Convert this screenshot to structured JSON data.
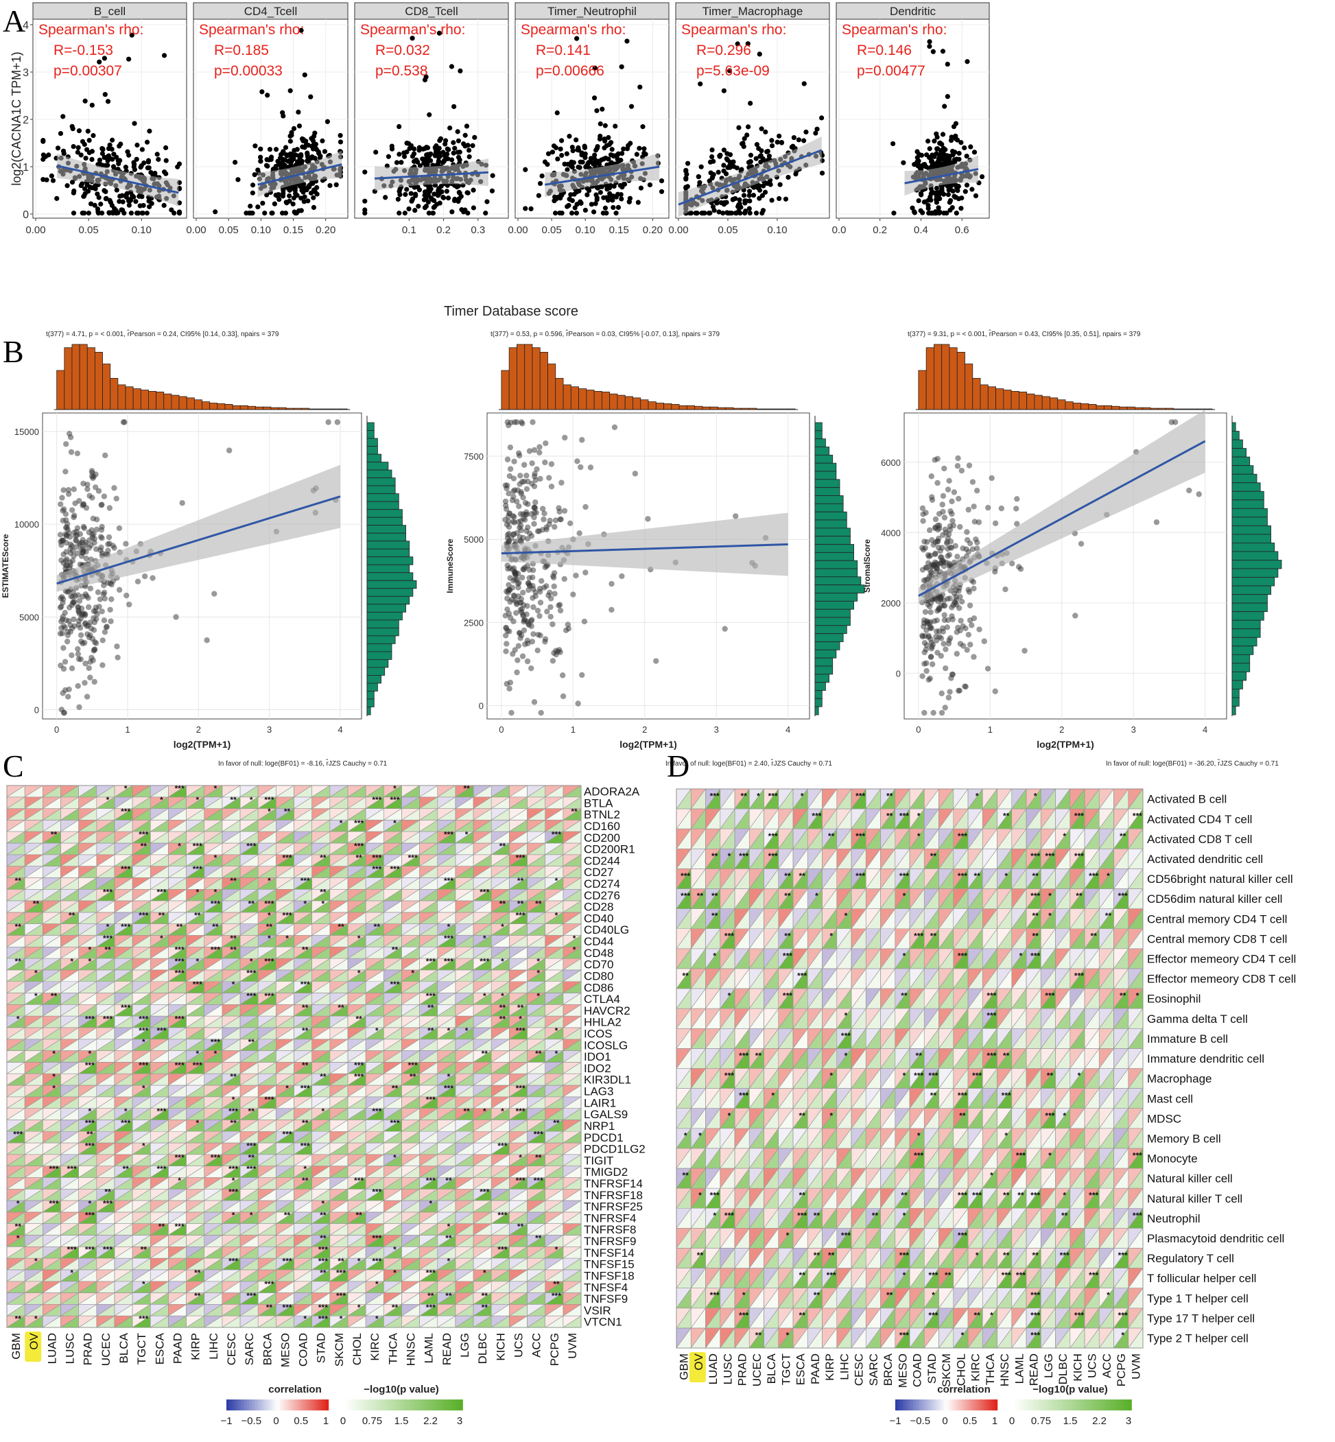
{
  "panel_labels": [
    "A",
    "B",
    "C",
    "D"
  ],
  "colors": {
    "scatter_point": "#000000",
    "fit_line": "#2f56a6",
    "ci_band": "#b4b4b4",
    "rho_text": "#e8221c",
    "strip_bg": "#d9d9d9",
    "hist_top": "#cc5a16",
    "hist_right": "#118a66",
    "heat_pos": "#e5584a",
    "heat_neg": "#6b52a8",
    "heat_p": "#5ab02a"
  },
  "chart_data": [
    {
      "id": "A",
      "type": "scatter",
      "ylabel": "log2(CACNA1C TPM+1)",
      "xlabel": "Timer Database score",
      "ylim": [
        0,
        4
      ],
      "yticks": [
        "0",
        "1",
        "2",
        "3",
        "4"
      ],
      "stat_header": "Spearman's rho:",
      "facets": [
        {
          "title": "B_cell",
          "r_text": "R=-0.153",
          "p_text": "p=0.00307",
          "xlim": [
            0,
            0.14
          ],
          "xticks": [
            0,
            0.05,
            0.1
          ],
          "xtick_labels": [
            "0.00",
            "0.05",
            "0.10"
          ],
          "x_center": 0.075,
          "x_spread": 0.032,
          "fit": [
            [
              0.02,
              1.02
            ],
            [
              0.135,
              0.45
            ]
          ]
        },
        {
          "title": "CD4_Tcell",
          "r_text": "R=0.185",
          "p_text": "p=0.00033",
          "xlim": [
            0,
            0.23
          ],
          "xticks": [
            0,
            0.05,
            0.1,
            0.15,
            0.2
          ],
          "xtick_labels": [
            "0.00",
            "0.05",
            "0.10",
            "0.15",
            "0.20"
          ],
          "x_center": 0.15,
          "x_spread": 0.03,
          "fit": [
            [
              0.095,
              0.62
            ],
            [
              0.225,
              1.05
            ]
          ]
        },
        {
          "title": "CD8_Tcell",
          "r_text": "R=0.032",
          "p_text": "p=0.538",
          "xlim": [
            -0.05,
            0.38
          ],
          "xticks": [
            0.1,
            0.2,
            0.3
          ],
          "xtick_labels": [
            "0.1",
            "0.2",
            "0.3"
          ],
          "x_center": 0.17,
          "x_spread": 0.075,
          "fit": [
            [
              0.0,
              0.75
            ],
            [
              0.33,
              0.88
            ]
          ]
        },
        {
          "title": "Timer_Neutrophil",
          "r_text": "R=0.141",
          "p_text": "p=0.00666",
          "xlim": [
            0,
            0.22
          ],
          "xticks": [
            0,
            0.05,
            0.1,
            0.15,
            0.2
          ],
          "xtick_labels": [
            "0.00",
            "0.05",
            "0.10",
            "0.15",
            "0.20"
          ],
          "x_center": 0.12,
          "x_spread": 0.04,
          "fit": [
            [
              0.04,
              0.62
            ],
            [
              0.21,
              1.0
            ]
          ]
        },
        {
          "title": "Timer_Macrophage",
          "r_text": "R=0.296",
          "p_text": "p=5.63e-09",
          "xlim": [
            0,
            0.15
          ],
          "xticks": [
            0,
            0.05,
            0.1
          ],
          "xtick_labels": [
            "0.00",
            "0.05",
            "0.10"
          ],
          "x_center": 0.06,
          "x_spread": 0.035,
          "fit": [
            [
              0.0,
              0.2
            ],
            [
              0.145,
              1.35
            ]
          ]
        },
        {
          "title": "Dendritic",
          "r_text": "R=0.146",
          "p_text": "p=0.00477",
          "xlim": [
            0,
            0.72
          ],
          "xticks": [
            0,
            0.2,
            0.4,
            0.6
          ],
          "xtick_labels": [
            "0.0",
            "0.2",
            "0.4",
            "0.6"
          ],
          "x_center": 0.5,
          "x_spread": 0.07,
          "fit": [
            [
              0.32,
              0.65
            ],
            [
              0.68,
              0.95
            ]
          ]
        }
      ]
    },
    {
      "id": "B",
      "type": "scatter",
      "xlabel": "log2(TPM+1)",
      "xlim": [
        -0.2,
        4.3
      ],
      "xticks": [
        "0",
        "1",
        "2",
        "3",
        "4"
      ],
      "plots": [
        {
          "ylabel": "ESTIMATEScore",
          "stats": "t(377) = 4.71, p = < 0.001, r̂Pearson = 0.24, CI95% [0.14, 0.33], npairs = 379",
          "ylim": [
            -500,
            16000
          ],
          "yticks": [
            0,
            5000,
            10000,
            15000
          ],
          "ytick_labels": [
            "0",
            "5000",
            "10000",
            "15000"
          ],
          "fit": [
            [
              0,
              6800
            ],
            [
              4,
              11500
            ]
          ],
          "y_center": 8000,
          "y_spread": 2800,
          "hist_top": [
            60,
            95,
            100,
            100,
            95,
            88,
            70,
            48,
            38,
            35,
            32,
            30,
            28,
            27,
            24,
            22,
            20,
            18,
            15,
            12,
            10,
            9,
            8,
            6,
            6,
            5,
            4,
            4,
            3,
            3,
            2,
            2,
            2,
            1,
            1,
            1,
            1,
            1
          ],
          "hist_right": [
            2,
            2,
            3,
            3,
            4,
            6,
            7,
            8,
            8,
            9,
            9,
            10,
            10,
            11,
            11,
            12,
            12,
            13,
            12,
            13,
            14,
            13,
            12,
            11,
            10,
            9,
            9,
            8,
            7,
            7,
            6,
            5,
            4,
            3,
            2,
            2,
            1
          ]
        },
        {
          "ylabel": "ImmuneScore",
          "stats": "t(377) = 0.53, p = 0.596, r̂Pearson = 0.03, CI95% [-0.07, 0.13], npairs = 379",
          "ylim": [
            -400,
            8800
          ],
          "yticks": [
            0,
            2500,
            5000,
            7500
          ],
          "ytick_labels": [
            "0",
            "2500",
            "5000",
            "7500"
          ],
          "fit": [
            [
              0,
              4580
            ],
            [
              4,
              4850
            ]
          ],
          "y_center": 4700,
          "y_spread": 1800,
          "hist_top": [
            60,
            95,
            100,
            100,
            95,
            88,
            70,
            48,
            38,
            35,
            32,
            30,
            28,
            27,
            24,
            22,
            20,
            18,
            15,
            12,
            10,
            9,
            8,
            6,
            6,
            5,
            4,
            4,
            3,
            3,
            2,
            2,
            2,
            1,
            1,
            1,
            1,
            1
          ],
          "hist_right": [
            2,
            2,
            3,
            4,
            5,
            6,
            6,
            7,
            7,
            8,
            8,
            9,
            9,
            10,
            10,
            11,
            11,
            12,
            12,
            13,
            14,
            12,
            11,
            10,
            10,
            9,
            8,
            7,
            6,
            5,
            5,
            4,
            3,
            2,
            2,
            1
          ]
        },
        {
          "ylabel": "StromalScore",
          "stats": "t(377) = 9.31, p = < 0.001, r̂Pearson = 0.43, CI95% [0.35, 0.51], npairs = 379",
          "ylim": [
            -1300,
            7400
          ],
          "yticks": [
            0,
            2000,
            4000,
            6000
          ],
          "ytick_labels": [
            "0",
            "2000",
            "4000",
            "6000"
          ],
          "fit": [
            [
              0,
              2200
            ],
            [
              4,
              6600
            ]
          ],
          "y_center": 3200,
          "y_spread": 1400,
          "hist_top": [
            60,
            95,
            100,
            100,
            95,
            88,
            70,
            48,
            38,
            35,
            32,
            30,
            28,
            27,
            24,
            22,
            20,
            18,
            15,
            12,
            10,
            9,
            8,
            6,
            6,
            5,
            4,
            4,
            3,
            3,
            2,
            2,
            2,
            1,
            1,
            1,
            1,
            1
          ],
          "hist_right": [
            1,
            2,
            3,
            4,
            5,
            6,
            7,
            8,
            9,
            9,
            10,
            10,
            11,
            11,
            12,
            13,
            14,
            13,
            12,
            11,
            10,
            10,
            9,
            8,
            8,
            7,
            6,
            5,
            5,
            4,
            3,
            2,
            2,
            1
          ]
        }
      ]
    },
    {
      "id": "C",
      "type": "heatmap",
      "null_note": "In favor of null: loge(BF01) = -8.16, r̂JZS Cauchy = 0.71",
      "columns": [
        "GBM",
        "OV",
        "LUAD",
        "LUSC",
        "PRAD",
        "UCEC",
        "BLCA",
        "TGCT",
        "ESCA",
        "PAAD",
        "KIRP",
        "LIHC",
        "CESC",
        "SARC",
        "BRCA",
        "MESO",
        "COAD",
        "STAD",
        "SKCM",
        "CHOL",
        "KIRC",
        "THCA",
        "HNSC",
        "LAML",
        "READ",
        "LGG",
        "DLBC",
        "KICH",
        "UCS",
        "ACC",
        "PCPG",
        "UVM"
      ],
      "highlight_column": "OV",
      "rows": [
        "ADORA2A",
        "BTLA",
        "BTNL2",
        "CD160",
        "CD200",
        "CD200R1",
        "CD244",
        "CD27",
        "CD274",
        "CD276",
        "CD28",
        "CD40",
        "CD40LG",
        "CD44",
        "CD48",
        "CD70",
        "CD80",
        "CD86",
        "CTLA4",
        "HAVCR2",
        "HHLA2",
        "ICOS",
        "ICOSLG",
        "IDO1",
        "IDO2",
        "KIR3DL1",
        "LAG3",
        "LAIR1",
        "LGALS9",
        "NRP1",
        "PDCD1",
        "PDCD1LG2",
        "TIGIT",
        "TMIGD2",
        "TNFRSF14",
        "TNFRSF18",
        "TNFRSF25",
        "TNFRSF4",
        "TNFRSF8",
        "TNFRSF9",
        "TNFSF14",
        "TNFSF15",
        "TNFSF18",
        "TNFSF4",
        "TNFSF9",
        "VSIR",
        "VTCN1"
      ],
      "legend": {
        "correlation_title": "correlation",
        "correlation_ticks": [
          "−1",
          "−0.5",
          "0",
          "0.5",
          "1"
        ],
        "p_title": "−log10(p value)",
        "p_ticks": [
          "0",
          "0.75",
          "1.5",
          "2.2",
          "3"
        ]
      }
    },
    {
      "id": "D",
      "type": "heatmap",
      "null_note_left": "In favor of null: loge(BF01) = 2.40, r̂JZS Cauchy = 0.71",
      "null_note_right": "In favor of null: loge(BF01) = -36.20, r̂JZS Cauchy = 0.71",
      "columns": [
        "GBM",
        "OV",
        "LUAD",
        "LUSC",
        "PRAD",
        "UCEC",
        "BLCA",
        "TGCT",
        "ESCA",
        "PAAD",
        "KIRP",
        "LIHC",
        "CESC",
        "SARC",
        "BRCA",
        "MESO",
        "COAD",
        "STAD",
        "SKCM",
        "CHOL",
        "KIRC",
        "THCA",
        "HNSC",
        "LAML",
        "READ",
        "LGG",
        "DLBC",
        "KICH",
        "UCS",
        "ACC",
        "PCPG",
        "UVM"
      ],
      "highlight_column": "OV",
      "rows": [
        "Activated B cell",
        "Activated CD4 T cell",
        "Activated CD8 T cell",
        "Activated dendritic cell",
        "CD56bright natural killer cell",
        "CD56dim natural killer cell",
        "Central memory CD4 T cell",
        "Central memory CD8 T cell",
        "Effector memeory CD4 T cell",
        "Effector memeory CD8 T cell",
        "Eosinophil",
        "Gamma delta T cell",
        "Immature  B cell",
        "Immature dendritic cell",
        "Macrophage",
        "Mast cell",
        "MDSC",
        "Memory B cell",
        "Monocyte",
        "Natural killer cell",
        "Natural killer T cell",
        "Neutrophil",
        "Plasmacytoid dendritic cell",
        "Regulatory T cell",
        "T follicular helper cell",
        "Type 1 T helper cell",
        "Type 17 T helper cell",
        "Type 2 T helper cell"
      ],
      "legend": {
        "correlation_title": "correlation",
        "correlation_ticks": [
          "−1",
          "−0.5",
          "0",
          "0.5",
          "1"
        ],
        "p_title": "−log10(p value)",
        "p_ticks": [
          "0",
          "0.75",
          "1.5",
          "2.2",
          "3"
        ]
      }
    }
  ]
}
